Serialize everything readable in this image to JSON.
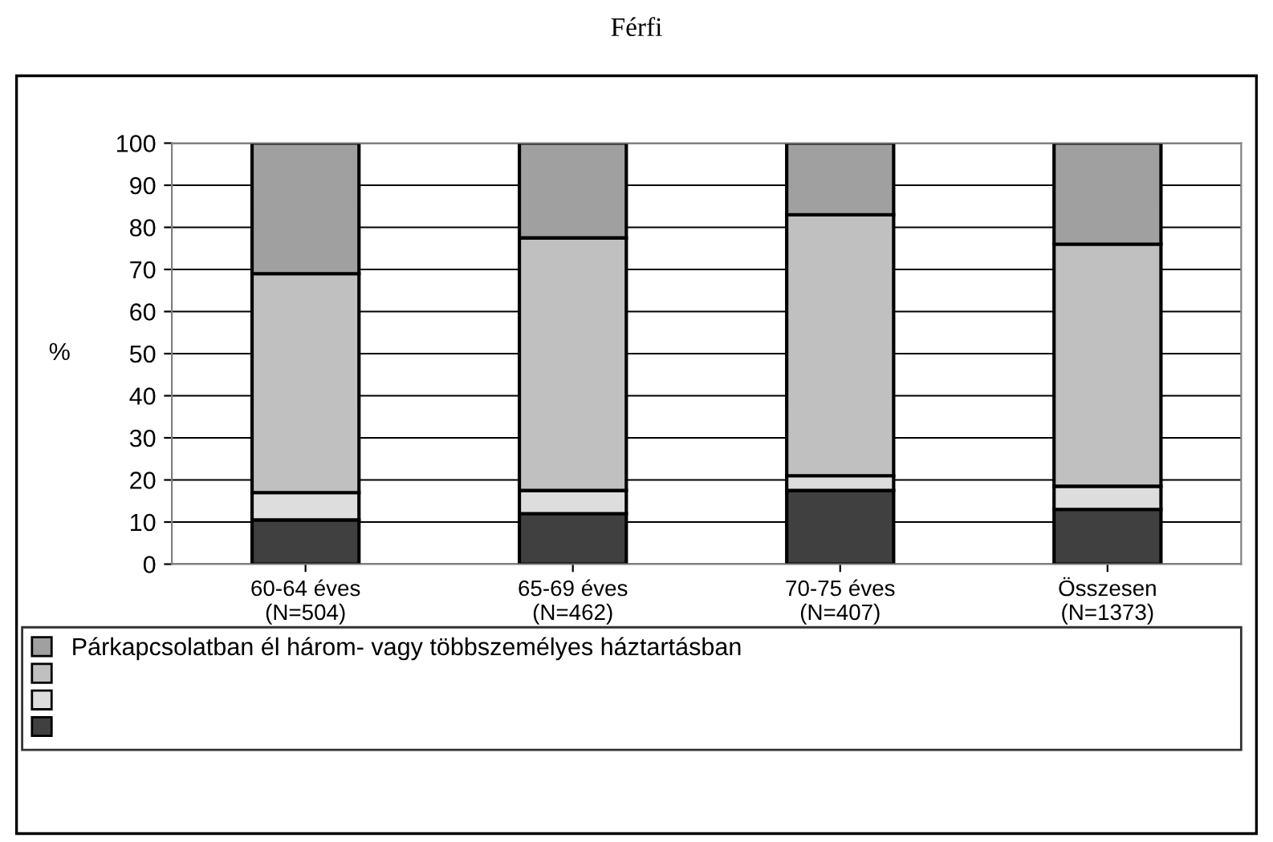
{
  "chart_data": {
    "type": "bar",
    "title": "Férfi",
    "ylabel": "%",
    "stacked": true,
    "categories": [
      "60-64 éves\n(N=504)",
      "65-69 éves\n(N=462)",
      "70-75 éves\n(N=407)",
      "Összesen\n(N=1373)"
    ],
    "series": [
      {
        "color": "#404040",
        "values": [
          10.5,
          12,
          17.5,
          13
        ]
      },
      {
        "color": "#dddddd",
        "values": [
          6.5,
          5.5,
          3.5,
          5.5
        ]
      },
      {
        "color": "#c0c0c0",
        "values": [
          52,
          60,
          62,
          57.5
        ]
      },
      {
        "name": "Párkapcsolatban él három- vagy többszemélyes háztartásban",
        "color": "#a0a0a0",
        "values": [
          31,
          22.5,
          17,
          24
        ]
      }
    ],
    "ylim": [
      0,
      100
    ],
    "yticks": [
      0,
      10,
      20,
      30,
      40,
      50,
      60,
      70,
      80,
      90,
      100
    ],
    "grid": "y",
    "legend": "bottom"
  }
}
